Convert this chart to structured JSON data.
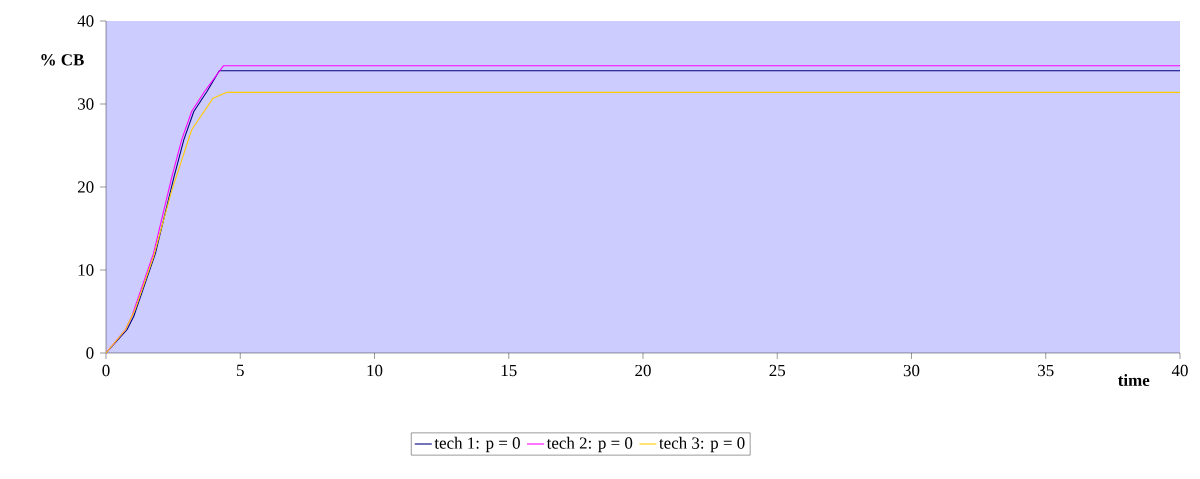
{
  "chart_data": {
    "type": "line",
    "xlabel": "time",
    "ylabel": "% CB",
    "xlim": [
      0,
      40
    ],
    "ylim": [
      0,
      40
    ],
    "xticks": [
      0,
      5,
      10,
      15,
      20,
      25,
      30,
      35,
      40
    ],
    "yticks": [
      0,
      10,
      20,
      30,
      40
    ],
    "grid": false,
    "legend": "bottom",
    "marker": "none",
    "line_style": "solid",
    "series": [
      {
        "name": "tech 1: p = 0",
        "color": "#000080",
        "x": [
          0,
          0.78,
          1.03,
          1.84,
          2.53,
          2.9,
          3.27,
          3.76,
          4.22,
          40
        ],
        "values": [
          0,
          2.8,
          4.4,
          12.0,
          21.2,
          25.7,
          29.1,
          31.5,
          34.0,
          34.0
        ]
      },
      {
        "name": "tech 2: p = 0",
        "color": "#ff00ff",
        "x": [
          0,
          0.72,
          0.96,
          1.77,
          2.45,
          2.82,
          3.19,
          3.69,
          4.37,
          40
        ],
        "values": [
          0,
          2.8,
          4.4,
          12.0,
          21.2,
          25.7,
          29.1,
          31.6,
          34.6,
          34.6
        ]
      },
      {
        "name": "tech 3: p = 0",
        "color": "#ffcc00",
        "x": [
          0,
          0.72,
          1.08,
          1.77,
          2.45,
          3.19,
          3.99,
          4.5,
          40
        ],
        "values": [
          0,
          2.8,
          5.2,
          11.6,
          19.6,
          26.9,
          30.7,
          31.4,
          31.4
        ]
      }
    ]
  }
}
